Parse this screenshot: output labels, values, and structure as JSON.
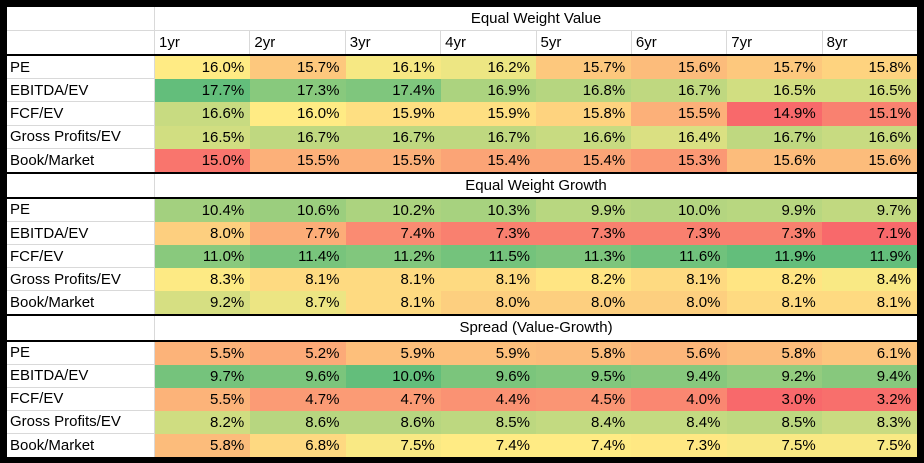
{
  "frame": {
    "border_color": "#000000",
    "sheet_background": "#ffffff",
    "gridline_color": "#d9d9d9"
  },
  "value_format": "percent, 1 decimal place",
  "colorscale": {
    "type": "3-color-scale",
    "min_color": "#F8696B",
    "mid_color": "#FFEB84",
    "max_color": "#63BE7B",
    "midpoint": "median (50th percentile)",
    "scope": "per section"
  },
  "columns": [
    "1yr",
    "2yr",
    "3yr",
    "4yr",
    "5yr",
    "6yr",
    "7yr",
    "8yr"
  ],
  "chart_data": [
    {
      "type": "heatmap",
      "title": "Equal Weight Value",
      "show_column_headers": true,
      "columns": [
        "1yr",
        "2yr",
        "3yr",
        "4yr",
        "5yr",
        "6yr",
        "7yr",
        "8yr"
      ],
      "rows": [
        {
          "label": "PE",
          "values": [
            16.0,
            15.7,
            16.1,
            16.2,
            15.7,
            15.6,
            15.7,
            15.8
          ]
        },
        {
          "label": "EBITDA/EV",
          "values": [
            17.7,
            17.3,
            17.4,
            16.9,
            16.8,
            16.7,
            16.5,
            16.5
          ]
        },
        {
          "label": "FCF/EV",
          "values": [
            16.6,
            16.0,
            15.9,
            15.9,
            15.8,
            15.5,
            14.9,
            15.1
          ]
        },
        {
          "label": "Gross Profits/EV",
          "values": [
            16.5,
            16.7,
            16.7,
            16.7,
            16.6,
            16.4,
            16.7,
            16.6
          ]
        },
        {
          "label": "Book/Market",
          "values": [
            15.0,
            15.5,
            15.5,
            15.4,
            15.4,
            15.3,
            15.6,
            15.6
          ]
        }
      ]
    },
    {
      "type": "heatmap",
      "title": "Equal Weight Growth",
      "show_column_headers": false,
      "columns": [
        "1yr",
        "2yr",
        "3yr",
        "4yr",
        "5yr",
        "6yr",
        "7yr",
        "8yr"
      ],
      "rows": [
        {
          "label": "PE",
          "values": [
            10.4,
            10.6,
            10.2,
            10.3,
            9.9,
            10.0,
            9.9,
            9.7
          ]
        },
        {
          "label": "EBITDA/EV",
          "values": [
            8.0,
            7.7,
            7.4,
            7.3,
            7.3,
            7.3,
            7.3,
            7.1
          ]
        },
        {
          "label": "FCF/EV",
          "values": [
            11.0,
            11.4,
            11.2,
            11.5,
            11.3,
            11.6,
            11.9,
            11.9
          ]
        },
        {
          "label": "Gross Profits/EV",
          "values": [
            8.3,
            8.1,
            8.1,
            8.1,
            8.2,
            8.1,
            8.2,
            8.4
          ]
        },
        {
          "label": "Book/Market",
          "values": [
            9.2,
            8.7,
            8.1,
            8.0,
            8.0,
            8.0,
            8.1,
            8.1
          ]
        }
      ]
    },
    {
      "type": "heatmap",
      "title": "Spread (Value-Growth)",
      "show_column_headers": false,
      "columns": [
        "1yr",
        "2yr",
        "3yr",
        "4yr",
        "5yr",
        "6yr",
        "7yr",
        "8yr"
      ],
      "rows": [
        {
          "label": "PE",
          "values": [
            5.5,
            5.2,
            5.9,
            5.9,
            5.8,
            5.6,
            5.8,
            6.1
          ]
        },
        {
          "label": "EBITDA/EV",
          "values": [
            9.7,
            9.6,
            10.0,
            9.6,
            9.5,
            9.4,
            9.2,
            9.4
          ]
        },
        {
          "label": "FCF/EV",
          "values": [
            5.5,
            4.7,
            4.7,
            4.4,
            4.5,
            4.0,
            3.0,
            3.2
          ]
        },
        {
          "label": "Gross Profits/EV",
          "values": [
            8.2,
            8.6,
            8.6,
            8.5,
            8.4,
            8.4,
            8.5,
            8.3
          ]
        },
        {
          "label": "Book/Market",
          "values": [
            5.8,
            6.8,
            7.5,
            7.4,
            7.4,
            7.3,
            7.5,
            7.5
          ]
        }
      ]
    }
  ]
}
